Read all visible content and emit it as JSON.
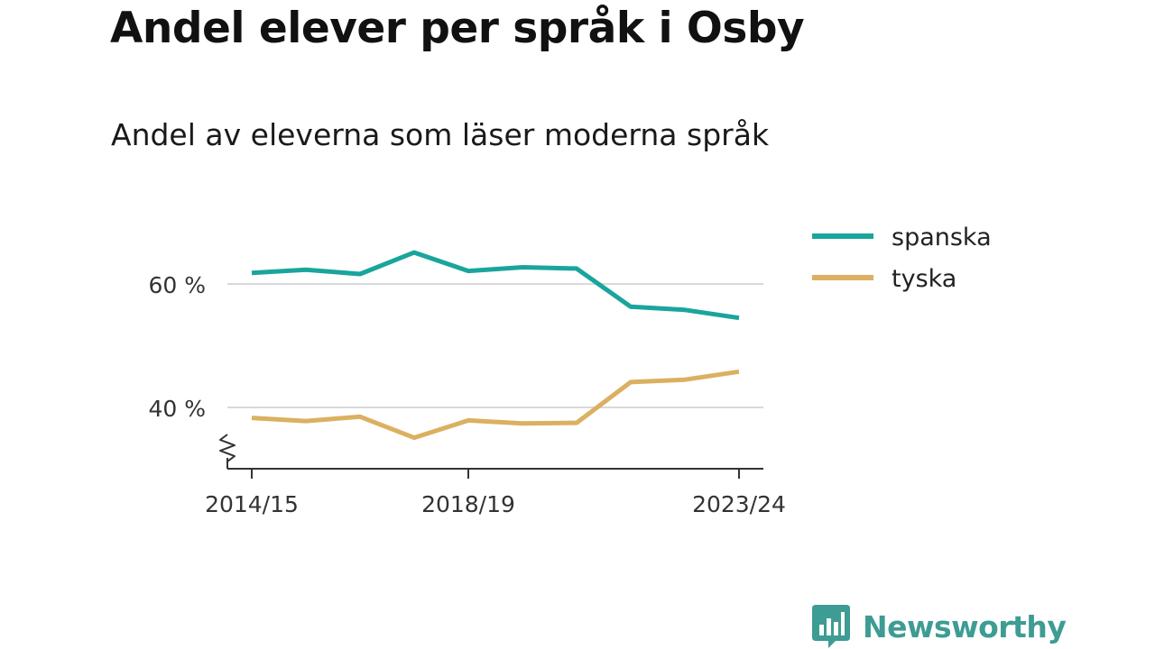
{
  "title": "Andel elever per språk i Osby",
  "subtitle": "Andel av eleverna som läser moderna språk",
  "logo": {
    "text": "Newsworthy",
    "icon": "bar-chart-speech-bubble-icon",
    "color": "#3d9c93"
  },
  "chart_data": {
    "type": "line",
    "x": [
      "2014/15",
      "2015/16",
      "2016/17",
      "2017/18",
      "2018/19",
      "2019/20",
      "2020/21",
      "2021/22",
      "2022/23",
      "2023/24"
    ],
    "x_tick_labels": [
      "2014/15",
      "2018/19",
      "2023/24"
    ],
    "y_tick_labels": [
      "60 %",
      "40 %"
    ],
    "y_ticks": [
      60,
      40
    ],
    "ylim": [
      30,
      67
    ],
    "y_axis_break": true,
    "grid": true,
    "legend_position": "top-right",
    "series": [
      {
        "name": "spanska",
        "color": "#1aa59c",
        "values": [
          61.8,
          62.3,
          61.6,
          65.1,
          62.1,
          62.7,
          62.5,
          56.3,
          55.8,
          54.5
        ]
      },
      {
        "name": "tyska",
        "color": "#dbb060",
        "values": [
          38.3,
          37.8,
          38.5,
          35.1,
          37.9,
          37.4,
          37.5,
          44.1,
          44.5,
          45.8
        ]
      }
    ]
  }
}
